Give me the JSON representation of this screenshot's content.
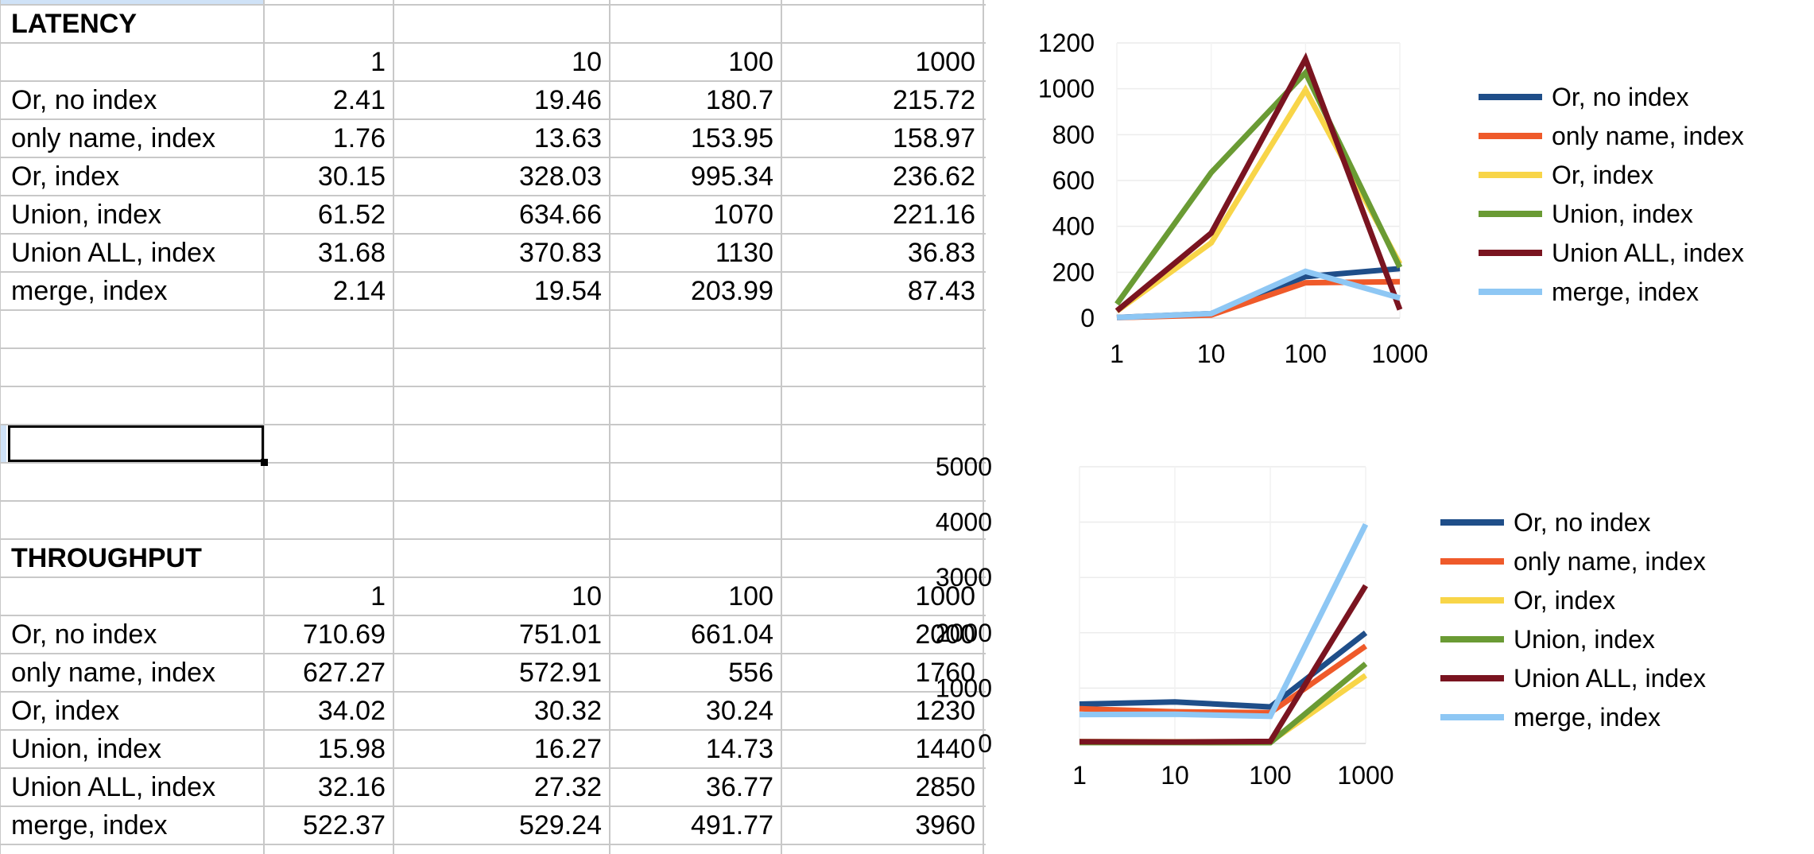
{
  "latency": {
    "title": "LATENCY",
    "headers": [
      "1",
      "10",
      "100",
      "1000"
    ],
    "rows": [
      {
        "label": "Or, no index",
        "v1": "2.41",
        "v10": "19.46",
        "v100": "180.7",
        "v1000": "215.72"
      },
      {
        "label": "only name, index",
        "v1": "1.76",
        "v10": "13.63",
        "v100": "153.95",
        "v1000": "158.97"
      },
      {
        "label": "Or, index",
        "v1": "30.15",
        "v10": "328.03",
        "v100": "995.34",
        "v1000": "236.62"
      },
      {
        "label": "Union, index",
        "v1": "61.52",
        "v10": "634.66",
        "v100": "1070",
        "v1000": "221.16"
      },
      {
        "label": "Union ALL, index",
        "v1": "31.68",
        "v10": "370.83",
        "v100": "1130",
        "v1000": "36.83"
      },
      {
        "label": "merge, index",
        "v1": "2.14",
        "v10": "19.54",
        "v100": "203.99",
        "v1000": "87.43"
      }
    ]
  },
  "throughput": {
    "title": "THROUGHPUT",
    "headers": [
      "1",
      "10",
      "100",
      "1000"
    ],
    "rows": [
      {
        "label": "Or, no index",
        "v1": "710.69",
        "v10": "751.01",
        "v100": "661.04",
        "v1000": "2000"
      },
      {
        "label": "only name, index",
        "v1": "627.27",
        "v10": "572.91",
        "v100": "556",
        "v1000": "1760"
      },
      {
        "label": "Or, index",
        "v1": "34.02",
        "v10": "30.32",
        "v100": "30.24",
        "v1000": "1230"
      },
      {
        "label": "Union, index",
        "v1": "15.98",
        "v10": "16.27",
        "v100": "14.73",
        "v1000": "1440"
      },
      {
        "label": "Union ALL, index",
        "v1": "32.16",
        "v10": "27.32",
        "v100": "36.77",
        "v1000": "2850"
      },
      {
        "label": "merge, index",
        "v1": "522.37",
        "v10": "529.24",
        "v100": "491.77",
        "v1000": "3960"
      }
    ]
  },
  "chart_data": [
    {
      "type": "line",
      "categories": [
        "1",
        "10",
        "100",
        "1000"
      ],
      "ylim": [
        0,
        1200
      ],
      "yticks": [
        0,
        200,
        400,
        600,
        800,
        1000,
        1200
      ],
      "grid": true,
      "legend_position": "right",
      "series": [
        {
          "name": "Or, no index",
          "color": "#1f4e89",
          "values": [
            2.41,
            19.46,
            180.7,
            215.72
          ]
        },
        {
          "name": "only name, index",
          "color": "#ef5a2a",
          "values": [
            1.76,
            13.63,
            153.95,
            158.97
          ]
        },
        {
          "name": "Or, index",
          "color": "#f8d548",
          "values": [
            30.15,
            328.03,
            995.34,
            236.62
          ]
        },
        {
          "name": "Union, index",
          "color": "#6a9b34",
          "values": [
            61.52,
            634.66,
            1070,
            221.16
          ]
        },
        {
          "name": "Union ALL, index",
          "color": "#7a1420",
          "values": [
            31.68,
            370.83,
            1130,
            36.83
          ]
        },
        {
          "name": "merge, index",
          "color": "#8ec7f4",
          "values": [
            2.14,
            19.54,
            203.99,
            87.43
          ]
        }
      ]
    },
    {
      "type": "line",
      "categories": [
        "1",
        "10",
        "100",
        "1000"
      ],
      "ylim": [
        0,
        5000
      ],
      "yticks": [
        0,
        1000,
        2000,
        3000,
        4000,
        5000
      ],
      "grid": true,
      "legend_position": "right",
      "series": [
        {
          "name": "Or, no index",
          "color": "#1f4e89",
          "values": [
            710.69,
            751.01,
            661.04,
            2000
          ]
        },
        {
          "name": "only name, index",
          "color": "#ef5a2a",
          "values": [
            627.27,
            572.91,
            556,
            1760
          ]
        },
        {
          "name": "Or, index",
          "color": "#f8d548",
          "values": [
            34.02,
            30.32,
            30.24,
            1230
          ]
        },
        {
          "name": "Union, index",
          "color": "#6a9b34",
          "values": [
            15.98,
            16.27,
            14.73,
            1440
          ]
        },
        {
          "name": "Union ALL, index",
          "color": "#7a1420",
          "values": [
            32.16,
            27.32,
            36.77,
            2850
          ]
        },
        {
          "name": "merge, index",
          "color": "#8ec7f4",
          "values": [
            522.37,
            529.24,
            491.77,
            3960
          ]
        }
      ]
    }
  ]
}
